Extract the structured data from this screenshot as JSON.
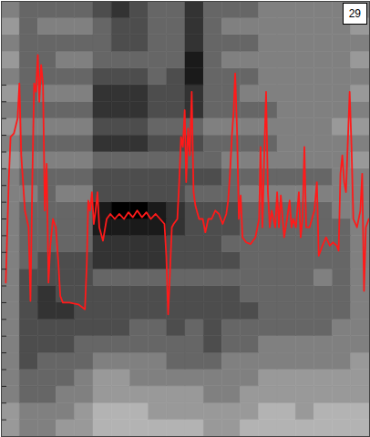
{
  "chart_data": {
    "type": "heatmap",
    "title": "29",
    "xlim": [
      0,
      100
    ],
    "ylim": [
      0,
      26
    ],
    "yticks": [
      1,
      2,
      3,
      4,
      5,
      6,
      7,
      8,
      9,
      10,
      11,
      12,
      13,
      14,
      15,
      16,
      17,
      18,
      19,
      20,
      21
    ],
    "tick_labels": false,
    "cells": {
      "x": [
        0,
        5,
        10,
        15,
        20,
        25,
        30,
        35,
        40,
        45,
        50,
        55,
        60,
        65,
        70,
        75,
        80,
        85,
        90,
        95,
        100
      ],
      "y": [
        0,
        1,
        2,
        3,
        4,
        5,
        6,
        7,
        8,
        9,
        10,
        11,
        12,
        13,
        14,
        15,
        16,
        17,
        18,
        19,
        20,
        21,
        22,
        23,
        24,
        25,
        26
      ],
      "zlim": [
        0,
        1
      ],
      "z": [
        [
          0.6,
          0.5,
          0.5,
          0.6,
          0.6,
          0.7,
          0.7,
          0.7,
          0.7,
          0.7,
          0.7,
          0.6,
          0.6,
          0.7,
          0.7,
          0.7,
          0.7,
          0.7,
          0.7,
          0.7
        ],
        [
          0.6,
          0.5,
          0.5,
          0.5,
          0.6,
          0.7,
          0.7,
          0.7,
          0.6,
          0.6,
          0.6,
          0.6,
          0.6,
          0.6,
          0.7,
          0.7,
          0.6,
          0.7,
          0.7,
          0.7
        ],
        [
          0.5,
          0.4,
          0.4,
          0.5,
          0.5,
          0.6,
          0.6,
          0.6,
          0.6,
          0.6,
          0.6,
          0.5,
          0.5,
          0.6,
          0.6,
          0.6,
          0.6,
          0.6,
          0.6,
          0.6
        ],
        [
          0.5,
          0.4,
          0.4,
          0.4,
          0.5,
          0.6,
          0.6,
          0.5,
          0.5,
          0.5,
          0.5,
          0.5,
          0.5,
          0.5,
          0.6,
          0.6,
          0.6,
          0.6,
          0.6,
          0.6
        ],
        [
          0.5,
          0.3,
          0.4,
          0.4,
          0.4,
          0.5,
          0.5,
          0.5,
          0.5,
          0.4,
          0.4,
          0.4,
          0.5,
          0.5,
          0.5,
          0.5,
          0.5,
          0.5,
          0.5,
          0.6
        ],
        [
          0.5,
          0.3,
          0.3,
          0.3,
          0.4,
          0.4,
          0.4,
          0.4,
          0.4,
          0.4,
          0.4,
          0.3,
          0.4,
          0.4,
          0.5,
          0.5,
          0.5,
          0.5,
          0.5,
          0.5
        ],
        [
          0.5,
          0.3,
          0.3,
          0.3,
          0.3,
          0.3,
          0.3,
          0.4,
          0.4,
          0.3,
          0.4,
          0.3,
          0.4,
          0.4,
          0.4,
          0.4,
          0.4,
          0.4,
          0.5,
          0.5
        ],
        [
          0.5,
          0.3,
          0.2,
          0.2,
          0.3,
          0.3,
          0.3,
          0.3,
          0.3,
          0.3,
          0.3,
          0.3,
          0.3,
          0.3,
          0.4,
          0.4,
          0.4,
          0.4,
          0.4,
          0.5
        ],
        [
          0.5,
          0.3,
          0.2,
          0.3,
          0.3,
          0.3,
          0.3,
          0.3,
          0.3,
          0.3,
          0.3,
          0.3,
          0.3,
          0.4,
          0.4,
          0.4,
          0.4,
          0.4,
          0.4,
          0.5
        ],
        [
          0.5,
          0.3,
          0.3,
          0.3,
          0.3,
          0.4,
          0.4,
          0.4,
          0.4,
          0.4,
          0.4,
          0.4,
          0.4,
          0.4,
          0.4,
          0.4,
          0.4,
          0.5,
          0.4,
          0.5
        ],
        [
          0.5,
          0.4,
          0.3,
          0.3,
          0.3,
          0.2,
          0.2,
          0.2,
          0.2,
          0.3,
          0.3,
          0.3,
          0.3,
          0.4,
          0.4,
          0.4,
          0.4,
          0.4,
          0.4,
          0.5
        ],
        [
          0.5,
          0.4,
          0.4,
          0.4,
          0.4,
          0.2,
          0.2,
          0.2,
          0.2,
          0.3,
          0.3,
          0.3,
          0.4,
          0.4,
          0.4,
          0.4,
          0.4,
          0.4,
          0.4,
          0.5
        ],
        [
          0.5,
          0.4,
          0.4,
          0.4,
          0.4,
          0.1,
          0.1,
          0.1,
          0.1,
          0.2,
          0.3,
          0.3,
          0.3,
          0.4,
          0.4,
          0.4,
          0.4,
          0.4,
          0.4,
          0.5
        ],
        [
          0.5,
          0.4,
          0.4,
          0.4,
          0.4,
          0.1,
          0.0,
          0.0,
          0.1,
          0.2,
          0.3,
          0.3,
          0.3,
          0.4,
          0.4,
          0.4,
          0.4,
          0.4,
          0.5,
          0.5
        ],
        [
          0.5,
          0.5,
          0.4,
          0.5,
          0.5,
          0.3,
          0.3,
          0.3,
          0.3,
          0.3,
          0.4,
          0.4,
          0.4,
          0.5,
          0.5,
          0.5,
          0.5,
          0.5,
          0.5,
          0.5
        ],
        [
          0.5,
          0.4,
          0.4,
          0.4,
          0.4,
          0.3,
          0.3,
          0.3,
          0.3,
          0.3,
          0.3,
          0.3,
          0.4,
          0.4,
          0.4,
          0.4,
          0.4,
          0.4,
          0.5,
          0.5
        ],
        [
          0.6,
          0.5,
          0.5,
          0.5,
          0.5,
          0.4,
          0.4,
          0.4,
          0.4,
          0.4,
          0.4,
          0.4,
          0.5,
          0.5,
          0.5,
          0.5,
          0.5,
          0.5,
          0.5,
          0.6
        ],
        [
          0.5,
          0.4,
          0.4,
          0.4,
          0.4,
          0.2,
          0.2,
          0.2,
          0.3,
          0.3,
          0.3,
          0.4,
          0.4,
          0.4,
          0.4,
          0.5,
          0.5,
          0.5,
          0.5,
          0.5
        ],
        [
          0.6,
          0.5,
          0.5,
          0.5,
          0.5,
          0.3,
          0.3,
          0.3,
          0.4,
          0.4,
          0.4,
          0.5,
          0.5,
          0.5,
          0.5,
          0.5,
          0.5,
          0.5,
          0.6,
          0.6
        ],
        [
          0.5,
          0.4,
          0.4,
          0.4,
          0.4,
          0.2,
          0.2,
          0.2,
          0.3,
          0.3,
          0.2,
          0.4,
          0.4,
          0.4,
          0.4,
          0.5,
          0.5,
          0.5,
          0.5,
          0.5
        ],
        [
          0.6,
          0.4,
          0.5,
          0.5,
          0.5,
          0.2,
          0.2,
          0.2,
          0.3,
          0.3,
          0.2,
          0.4,
          0.4,
          0.5,
          0.5,
          0.5,
          0.5,
          0.5,
          0.5,
          0.6
        ],
        [
          0.5,
          0.4,
          0.4,
          0.4,
          0.4,
          0.3,
          0.3,
          0.3,
          0.4,
          0.3,
          0.1,
          0.4,
          0.4,
          0.4,
          0.5,
          0.5,
          0.5,
          0.5,
          0.5,
          0.5
        ],
        [
          0.6,
          0.4,
          0.4,
          0.5,
          0.5,
          0.4,
          0.4,
          0.4,
          0.4,
          0.4,
          0.1,
          0.4,
          0.5,
          0.5,
          0.5,
          0.5,
          0.5,
          0.5,
          0.5,
          0.6
        ],
        [
          0.5,
          0.4,
          0.4,
          0.4,
          0.4,
          0.4,
          0.3,
          0.3,
          0.4,
          0.4,
          0.2,
          0.4,
          0.4,
          0.4,
          0.5,
          0.5,
          0.5,
          0.5,
          0.5,
          0.5
        ],
        [
          0.6,
          0.4,
          0.5,
          0.5,
          0.5,
          0.4,
          0.3,
          0.3,
          0.4,
          0.4,
          0.2,
          0.4,
          0.5,
          0.5,
          0.5,
          0.5,
          0.5,
          0.5,
          0.5,
          0.6
        ],
        [
          0.5,
          0.4,
          0.4,
          0.4,
          0.4,
          0.3,
          0.2,
          0.3,
          0.4,
          0.4,
          0.2,
          0.4,
          0.4,
          0.4,
          0.5,
          0.5,
          0.5,
          0.5,
          0.5,
          0.5
        ]
      ]
    },
    "series": [
      {
        "type": "line",
        "color": "#ff1a1a",
        "x": [
          1.2,
          2.0,
          2.5,
          3.4,
          4.4,
          4.9,
          5.4,
          6.4,
          7.4,
          7.9,
          8.4,
          8.9,
          9.4,
          9.9,
          10.3,
          10.8,
          11.3,
          11.8,
          12.3,
          12.8,
          13.3,
          14.0,
          14.8,
          15.5,
          16.0,
          16.7,
          18.5,
          20.9,
          22.7,
          23.2,
          23.6,
          24.1,
          24.6,
          25.1,
          25.6,
          26.1,
          26.6,
          27.6,
          28.6,
          29.6,
          30.8,
          32.0,
          33.3,
          34.5,
          35.7,
          36.9,
          38.2,
          39.4,
          40.6,
          41.9,
          43.1,
          44.3,
          44.8,
          45.3,
          45.8,
          46.3,
          46.8,
          47.8,
          48.3,
          48.8,
          49.3,
          49.8,
          50.2,
          50.7,
          51.2,
          51.7,
          52.2,
          52.7,
          53.7,
          54.7,
          55.4,
          56.2,
          57.1,
          58.1,
          59.1,
          60.1,
          61.1,
          61.6,
          62.1,
          62.6,
          63.1,
          63.5,
          64.0,
          64.5,
          65.0,
          65.5,
          66.5,
          67.7,
          69.0,
          70.0,
          70.4,
          70.9,
          71.4,
          71.9,
          72.4,
          72.9,
          73.4,
          73.9,
          74.4,
          74.9,
          75.4,
          75.9,
          76.4,
          76.8,
          77.6,
          78.3,
          78.8,
          79.3,
          80.0,
          80.8,
          81.3,
          81.8,
          82.3,
          82.8,
          83.7,
          85.0,
          85.7,
          86.2,
          87.2,
          88.2,
          89.2,
          90.1,
          91.1,
          91.6,
          92.1,
          92.6,
          93.1,
          93.6,
          94.6,
          95.1,
          95.6,
          96.6,
          97.5,
          98.0,
          98.5,
          99.0,
          99.8
        ],
        "values": [
          9.2,
          15.2,
          17.9,
          18.1,
          19.0,
          21.1,
          16.8,
          13.5,
          12.5,
          8.1,
          15.2,
          21.1,
          20.6,
          22.8,
          20.0,
          22.2,
          21.1,
          13.5,
          16.3,
          9.2,
          11.4,
          13.0,
          12.5,
          10.3,
          8.4,
          8.0,
          8.0,
          7.9,
          7.6,
          10.3,
          14.1,
          13.5,
          14.6,
          12.7,
          13.5,
          14.6,
          12.5,
          11.7,
          13.0,
          13.3,
          13.0,
          13.3,
          13.0,
          13.4,
          13.1,
          13.5,
          13.1,
          13.4,
          13.0,
          13.3,
          13.0,
          12.7,
          10.8,
          7.3,
          9.8,
          12.5,
          12.7,
          13.0,
          15.2,
          17.9,
          17.3,
          19.5,
          15.2,
          18.4,
          16.8,
          20.6,
          14.6,
          13.8,
          13.0,
          13.0,
          12.2,
          13.0,
          13.0,
          13.5,
          13.3,
          12.7,
          13.3,
          14.1,
          15.7,
          17.9,
          19.5,
          21.7,
          18.4,
          13.0,
          14.4,
          11.9,
          11.6,
          11.5,
          11.9,
          13.0,
          17.3,
          12.5,
          16.8,
          20.6,
          14.6,
          12.5,
          13.5,
          13.0,
          12.5,
          14.6,
          12.5,
          14.4,
          13.0,
          11.9,
          13.0,
          14.1,
          12.5,
          13.0,
          12.5,
          14.6,
          11.9,
          13.0,
          17.3,
          12.5,
          12.5,
          13.5,
          15.2,
          10.8,
          11.4,
          11.9,
          11.4,
          11.6,
          11.4,
          11.1,
          15.7,
          16.8,
          15.2,
          14.6,
          20.6,
          17.3,
          13.0,
          12.5,
          13.5,
          15.7,
          8.7,
          12.5,
          13.0
        ]
      }
    ]
  }
}
